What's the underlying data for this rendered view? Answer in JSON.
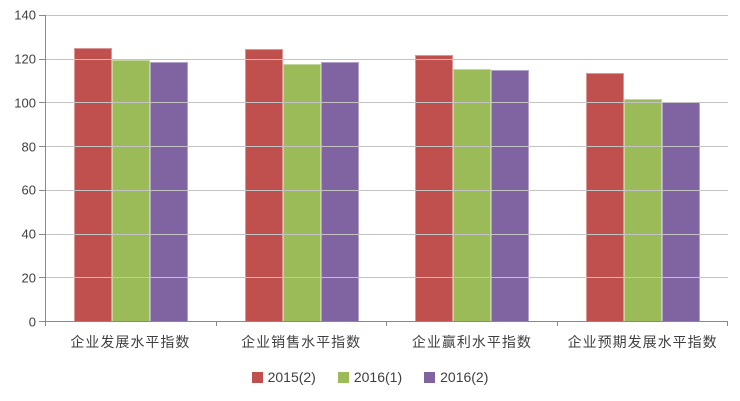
{
  "chart_data": {
    "type": "bar",
    "title": "",
    "xlabel": "",
    "ylabel": "",
    "categories": [
      "企业发展水平指数",
      "企业销售水平指数",
      "企业赢利水平指数",
      "企业预期发展水平指数"
    ],
    "series": [
      {
        "name": "2015(2)",
        "color": "#c0504d",
        "border_color": "#d99694",
        "values": [
          125.0,
          124.5,
          121.7,
          113.5
        ]
      },
      {
        "name": "2016(1)",
        "color": "#9bbb59",
        "border_color": "#c3d69b",
        "values": [
          119.2,
          117.4,
          115.2,
          101.5
        ]
      },
      {
        "name": "2016(2)",
        "color": "#8064a2",
        "border_color": "#b3a2c7",
        "values": [
          118.3,
          118.6,
          114.8,
          100.3
        ]
      }
    ],
    "ylim": [
      0,
      140
    ],
    "yticks": [
      0,
      20,
      40,
      60,
      80,
      100,
      120,
      140
    ],
    "grid": true,
    "legend_position": "bottom",
    "colors": {
      "gridline": "#c3c3c3",
      "axis": "#898989",
      "text": "#3f3f3f",
      "background": "#ffffff"
    }
  }
}
